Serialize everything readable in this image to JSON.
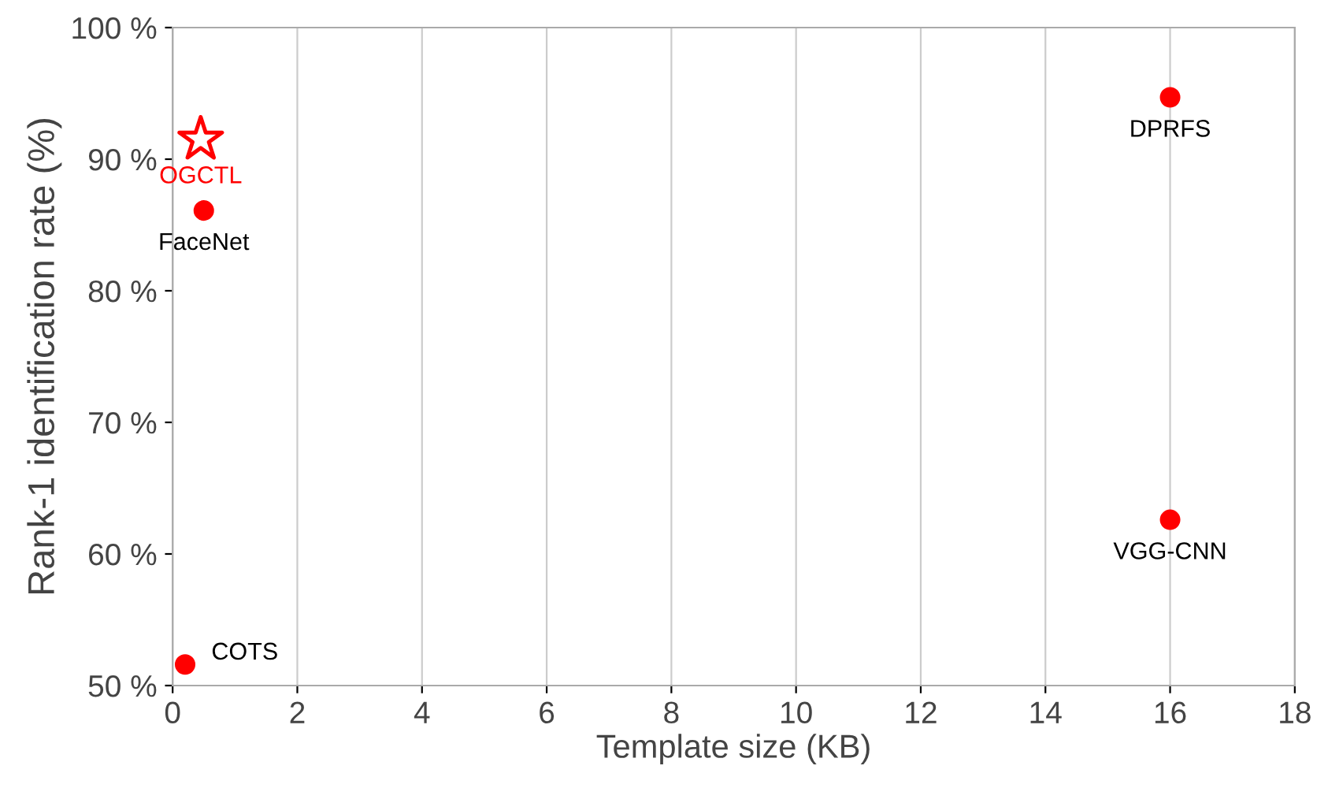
{
  "chart_data": {
    "type": "scatter",
    "xlabel": "Template size (KB)",
    "ylabel": "Rank-1 identification rate (%)",
    "xlim": [
      0,
      18
    ],
    "xticks": [
      0,
      2,
      4,
      6,
      8,
      10,
      12,
      14,
      16,
      18
    ],
    "ylim": [
      50,
      100
    ],
    "yticks": [
      {
        "value": 50,
        "label": "50 %"
      },
      {
        "value": 60,
        "label": "60 %"
      },
      {
        "value": 70,
        "label": "70 %"
      },
      {
        "value": 80,
        "label": "80 %"
      },
      {
        "value": 90,
        "label": "90 %"
      },
      {
        "value": 100,
        "label": "100 %"
      }
    ],
    "grid": "x",
    "series": [
      {
        "color": "#ff0000",
        "marker": "circle",
        "x": [
          0.5,
          0.2,
          16,
          16
        ],
        "values": [
          86.1,
          51.6,
          94.7,
          62.6
        ]
      },
      {
        "name": "OGCTL",
        "color": "#ff0000",
        "marker": "star",
        "x": [
          0.45
        ],
        "values": [
          91.5
        ]
      }
    ],
    "annotations": [
      {
        "text": "FaceNet",
        "x": 0.5,
        "y": 86.1
      },
      {
        "text": "COTS",
        "x": 0.2,
        "y": 51.6
      },
      {
        "text": "DPRFS",
        "x": 16,
        "y": 94.7
      },
      {
        "text": "VGG-CNN",
        "x": 16,
        "y": 62.6
      }
    ]
  }
}
